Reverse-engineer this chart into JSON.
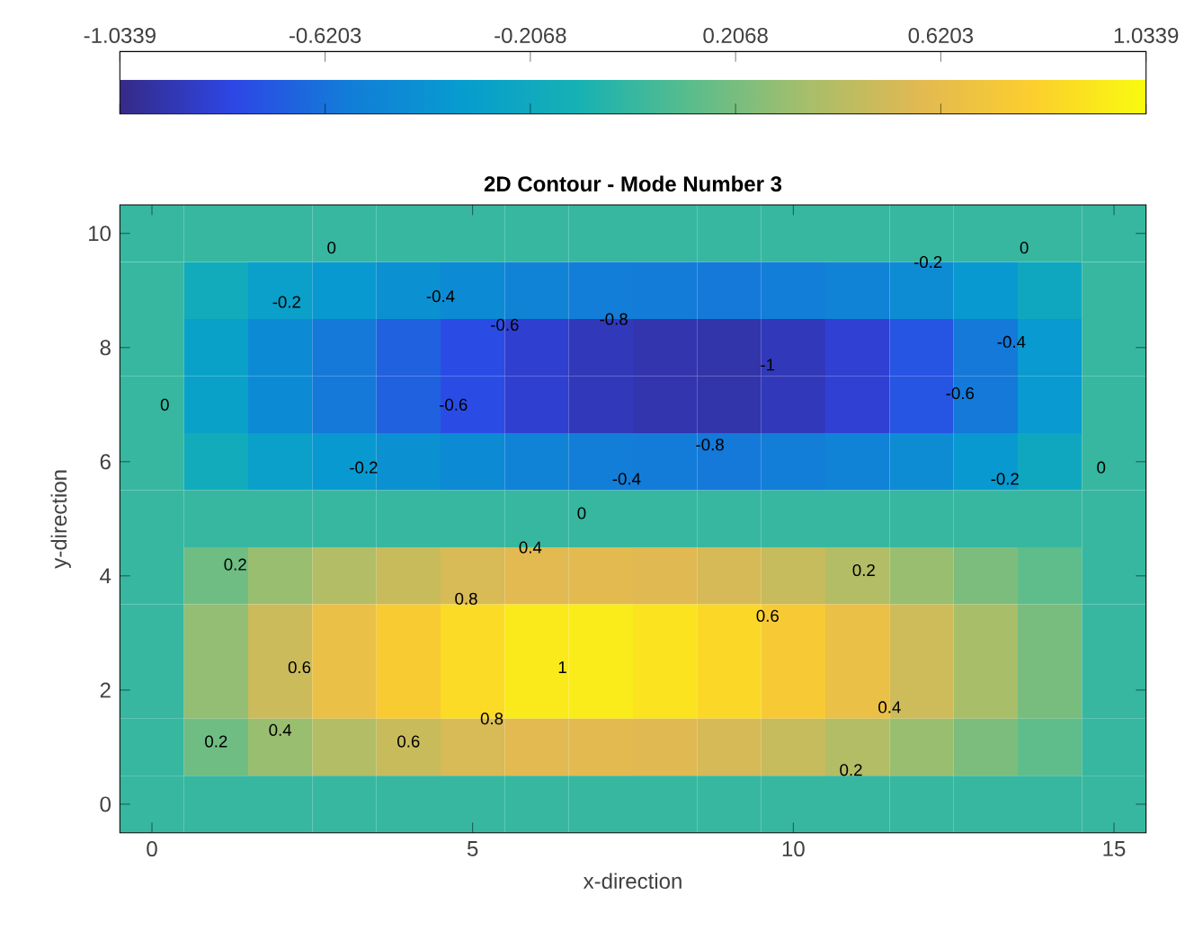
{
  "chart_data": {
    "type": "heatmap",
    "title": "2D Contour - Mode Number 3",
    "xlabel": "x-direction",
    "ylabel": "y-direction",
    "categories": [
      "0",
      null,
      null,
      null,
      null,
      "5",
      null,
      null,
      null,
      null,
      "10",
      null,
      null,
      null,
      null,
      "15"
    ],
    "y_categories": [
      "10",
      null,
      "8",
      null,
      "6",
      null,
      "4",
      null,
      "2",
      null,
      "0"
    ],
    "clim": [
      -1.0339,
      1.0339
    ],
    "cticks": [
      -1.0339,
      -0.6203,
      -0.2068,
      0.2068,
      0.6203,
      1.0339
    ],
    "cells": [
      [
        0,
        0,
        0,
        0,
        0,
        0,
        0,
        0,
        0,
        0,
        0,
        0,
        0,
        0,
        0,
        0
      ],
      [
        0,
        -0.18,
        -0.3,
        -0.37,
        -0.43,
        -0.48,
        -0.53,
        -0.57,
        -0.58,
        -0.59,
        -0.57,
        -0.53,
        -0.46,
        -0.37,
        -0.22,
        0
      ],
      [
        0,
        -0.29,
        -0.48,
        -0.59,
        -0.69,
        -0.78,
        -0.86,
        -0.91,
        -0.94,
        -0.95,
        -0.91,
        -0.85,
        -0.74,
        -0.59,
        -0.36,
        0
      ],
      [
        0,
        -0.29,
        -0.48,
        -0.59,
        -0.69,
        -0.78,
        -0.86,
        -0.91,
        -0.94,
        -0.95,
        -0.91,
        -0.85,
        -0.74,
        -0.59,
        -0.36,
        0
      ],
      [
        0,
        -0.18,
        -0.3,
        -0.37,
        -0.43,
        -0.48,
        -0.53,
        -0.57,
        -0.58,
        -0.59,
        -0.57,
        -0.53,
        -0.46,
        -0.37,
        -0.22,
        0
      ],
      [
        0,
        0,
        0,
        0,
        0,
        0,
        0,
        0,
        0,
        0,
        0,
        0,
        0,
        0,
        0,
        0
      ],
      [
        0,
        0.18,
        0.31,
        0.4,
        0.48,
        0.54,
        0.58,
        0.59,
        0.57,
        0.53,
        0.47,
        0.4,
        0.31,
        0.22,
        0.13,
        0
      ],
      [
        0,
        0.29,
        0.49,
        0.65,
        0.77,
        0.87,
        0.94,
        0.95,
        0.91,
        0.85,
        0.76,
        0.65,
        0.5,
        0.36,
        0.21,
        0
      ],
      [
        0,
        0.29,
        0.49,
        0.65,
        0.77,
        0.87,
        0.94,
        0.95,
        0.91,
        0.85,
        0.76,
        0.65,
        0.5,
        0.36,
        0.21,
        0
      ],
      [
        0,
        0.18,
        0.31,
        0.4,
        0.48,
        0.54,
        0.58,
        0.59,
        0.57,
        0.53,
        0.47,
        0.4,
        0.31,
        0.22,
        0.13,
        0
      ],
      [
        0,
        0,
        0,
        0,
        0,
        0,
        0,
        0,
        0,
        0,
        0,
        0,
        0,
        0,
        0,
        0
      ]
    ],
    "annotations": [
      "0",
      "0",
      "-0.2",
      "-0.4",
      "-0.6",
      "-0.8",
      "-0.6",
      "-0.2",
      "-0.4",
      "0",
      "0",
      "-0.2",
      "-1",
      "-0.4",
      "-0.6",
      "-0.8",
      "-0.2",
      "0",
      "0.2",
      "0.4",
      "0.8",
      "0.6",
      "1",
      "0.4",
      "0.2",
      "0.6",
      "0.8",
      "0.2",
      "0.6",
      "0.4",
      "0.2"
    ]
  }
}
